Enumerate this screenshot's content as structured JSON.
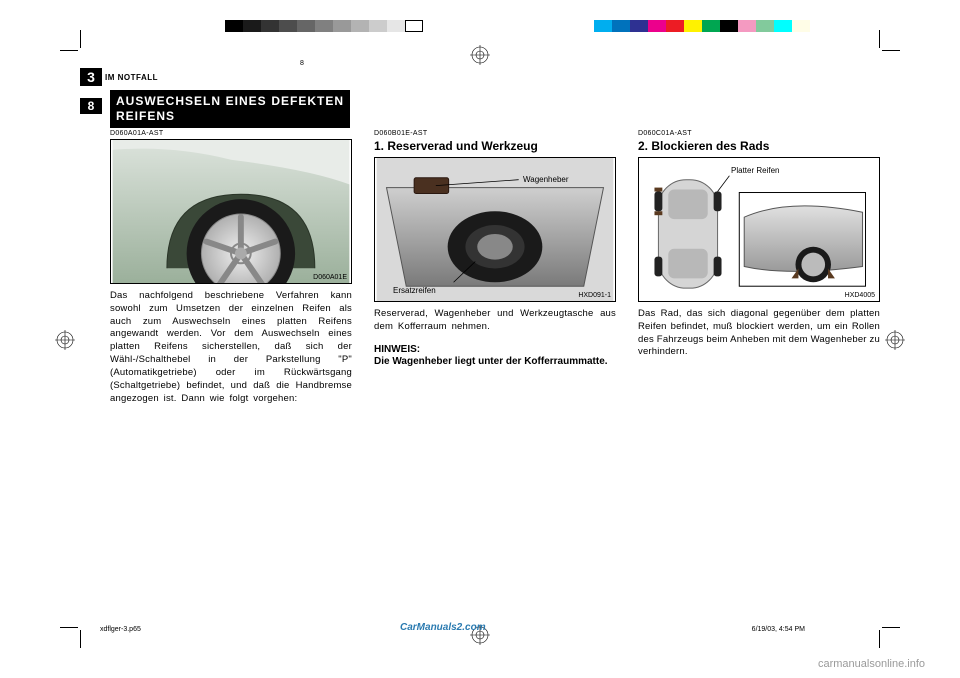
{
  "colorbar_left": [
    "#000000",
    "#1a1a1a",
    "#333333",
    "#4d4d4d",
    "#666666",
    "#808080",
    "#999999",
    "#b3b3b3",
    "#cccccc",
    "#e6e6e6",
    "#ffffff"
  ],
  "colorbar_right": [
    "#00aeef",
    "#0072bc",
    "#2e3192",
    "#ec008c",
    "#ed1c24",
    "#fff200",
    "#00a651",
    "#000000",
    "#f49ac1",
    "#82ca9c",
    "#00ffff",
    "#fffde7"
  ],
  "chapter": {
    "number": "3",
    "label": "IM NOTFALL"
  },
  "page_number": "8",
  "section_header": "AUSWECHSELN EINES DEFEKTEN REIFENS",
  "col1": {
    "code": "D060A01A-AST",
    "fig_ref": "D060A01E",
    "text": "Das nachfolgend beschriebene Verfahren kann sowohl zum Umsetzen der einzelnen Reifen als auch zum Auswechseln eines platten Reifens angewandt werden. Vor dem Auswechseln eines platten Reifens sicherstellen, daß sich der Wähl-/Schalthebel in der Parkstellung \"P\" (Automatikgetriebe) oder im Rückwärtsgang (Schaltgetriebe) befindet, und daß die Handbremse angezogen ist. Dann wie folgt vorgehen:"
  },
  "col2": {
    "code": "D060B01E-AST",
    "subtitle": "1. Reserverad und Werkzeug",
    "fig_ref": "HXD091-1",
    "label_jack": "Wagenheber",
    "label_spare": "Ersatzreifen",
    "text": "Reserverad, Wagenheber und Werkzeugtasche aus dem Kofferraum nehmen.",
    "hint_title": "HINWEIS:",
    "hint_body": "Die Wagenheber liegt unter der Kofferraummatte."
  },
  "col3": {
    "code": "D060C01A-AST",
    "subtitle": "2. Blockieren des Rads",
    "fig_ref": "HXD4005",
    "label_flat": "Platter Reifen",
    "text": "Das Rad, das sich diagonal gegenüber dem platten Reifen befindet, muß blockiert werden, um ein Rollen des Fahrzeugs beim Anheben mit dem Wagenheber zu verhindern."
  },
  "footer": {
    "file": "xdflger-3.p65",
    "page": "8",
    "date": "6/19/03, 4:54 PM"
  },
  "watermark": "CarManuals2.com",
  "watermark2": "carmanualsonline.info"
}
